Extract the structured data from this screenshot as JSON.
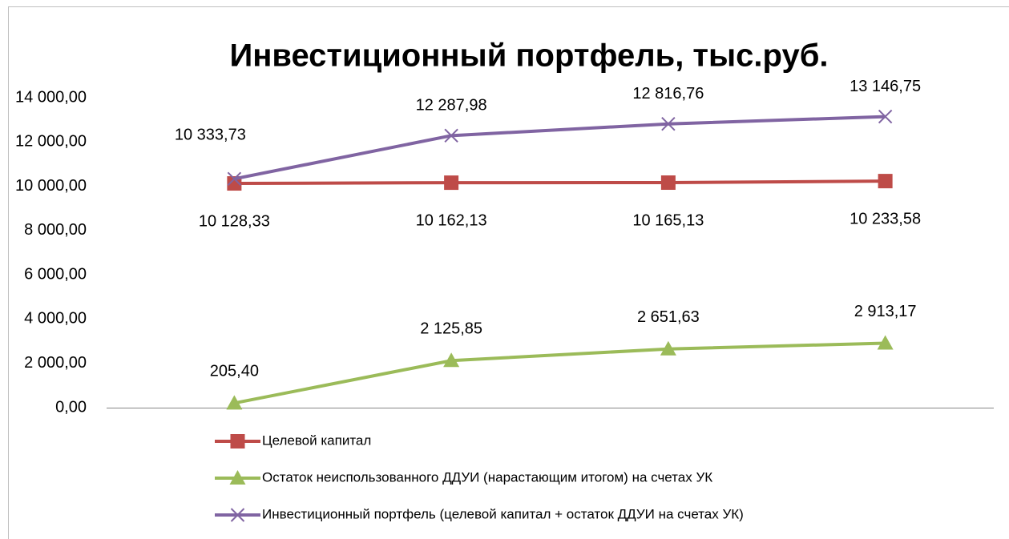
{
  "chart_data": {
    "type": "line",
    "title": "Инвестиционный портфель, тыс.руб.",
    "categories": [
      null,
      null,
      null,
      null
    ],
    "series": [
      {
        "name": "Целевой капитал",
        "color": "#be4b48",
        "marker": "square",
        "values": [
          10128.33,
          10162.13,
          10165.13,
          10233.58
        ],
        "value_labels": [
          "10 128,33",
          "10 162,13",
          "10 165,13",
          "10 233,58"
        ]
      },
      {
        "name": "Остаток неиспользованного ДДУИ (нарастающим итогом) на счетах УК",
        "color": "#9bbb59",
        "marker": "triangle",
        "values": [
          205.4,
          2125.85,
          2651.63,
          2913.17
        ],
        "value_labels": [
          "205,40",
          "2 125,85",
          "2 651,63",
          "2 913,17"
        ]
      },
      {
        "name": "Инвестиционный портфель (целевой капитал + остаток ДДУИ на счетах УК)",
        "color": "#8064a2",
        "marker": "x",
        "values": [
          10333.73,
          12287.98,
          12816.76,
          13146.75
        ],
        "value_labels": [
          "10 333,73",
          "12 287,98",
          "12 816,76",
          "13 146,75"
        ]
      }
    ],
    "ylim": [
      0,
      14000
    ],
    "yticks": [
      {
        "value": 0,
        "label": "0,00"
      },
      {
        "value": 2000,
        "label": "2 000,00"
      },
      {
        "value": 4000,
        "label": "4 000,00"
      },
      {
        "value": 6000,
        "label": "6 000,00"
      },
      {
        "value": 8000,
        "label": "8 000,00"
      },
      {
        "value": 10000,
        "label": "10 000,00"
      },
      {
        "value": 12000,
        "label": "12 000,00"
      },
      {
        "value": 14000,
        "label": "14 000,00"
      }
    ],
    "grid": false,
    "legend": "bottom"
  }
}
